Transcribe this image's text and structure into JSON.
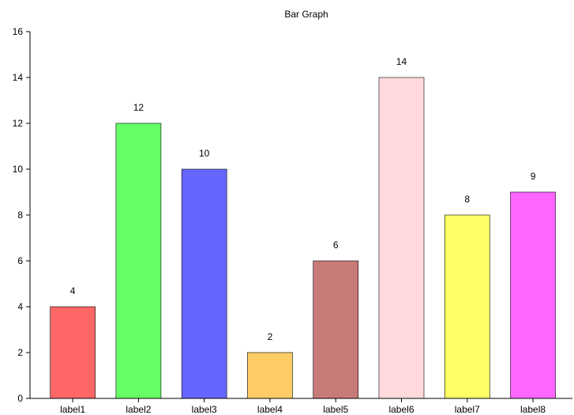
{
  "chart_data": {
    "type": "bar",
    "title": "Bar Graph",
    "xlabel": "",
    "ylabel": "",
    "categories": [
      "label1",
      "label2",
      "label3",
      "label4",
      "label5",
      "label6",
      "label7",
      "label8"
    ],
    "values": [
      4,
      12,
      10,
      2,
      6,
      14,
      8,
      9
    ],
    "data_labels": [
      "4",
      "12",
      "10",
      "2",
      "6",
      "14",
      "8",
      "9"
    ],
    "colors": [
      "#ff6666",
      "#66ff66",
      "#6666ff",
      "#ffcc66",
      "#c87a78",
      "#ffd9dc",
      "#ffff66",
      "#ff66ff"
    ],
    "ylim": [
      0,
      16
    ],
    "yticks": [
      0,
      2,
      4,
      6,
      8,
      10,
      12,
      14,
      16
    ],
    "ytick_labels": [
      "0",
      "2",
      "4",
      "6",
      "8",
      "10",
      "12",
      "14",
      "16"
    ],
    "grid": false,
    "legend": "none"
  }
}
